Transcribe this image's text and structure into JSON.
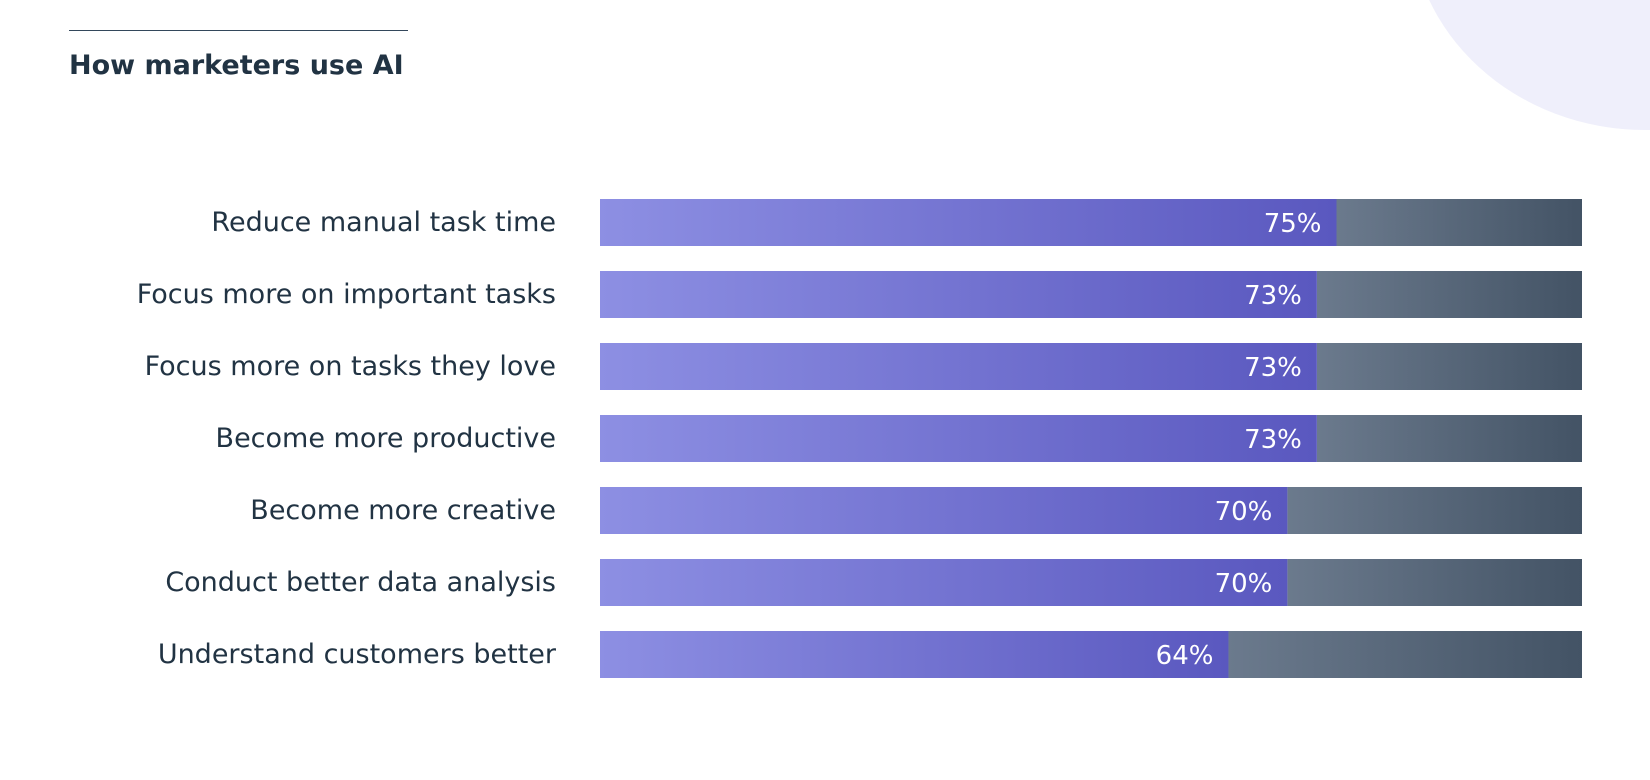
{
  "chart_data": {
    "type": "bar",
    "orientation": "horizontal",
    "stacked_with_remainder": true,
    "title": "How marketers use AI",
    "categories": [
      "Reduce manual task time",
      "Focus more on important tasks",
      "Focus more on tasks they love",
      "Become more productive",
      "Become more creative",
      "Conduct better data analysis",
      "Understand customers better"
    ],
    "values": [
      75,
      73,
      73,
      73,
      70,
      70,
      64
    ],
    "value_suffix": "%",
    "xlim": [
      0,
      100
    ],
    "grid": false,
    "legend": "none",
    "colors": {
      "value_fill_start": "#8d8fe3",
      "value_fill_end": "#5a58bf",
      "remainder_fill_start": "#6b7a8d",
      "remainder_fill_end": "#435365",
      "value_label": "#ffffff",
      "category_label": "#213343",
      "title": "#213343"
    }
  }
}
